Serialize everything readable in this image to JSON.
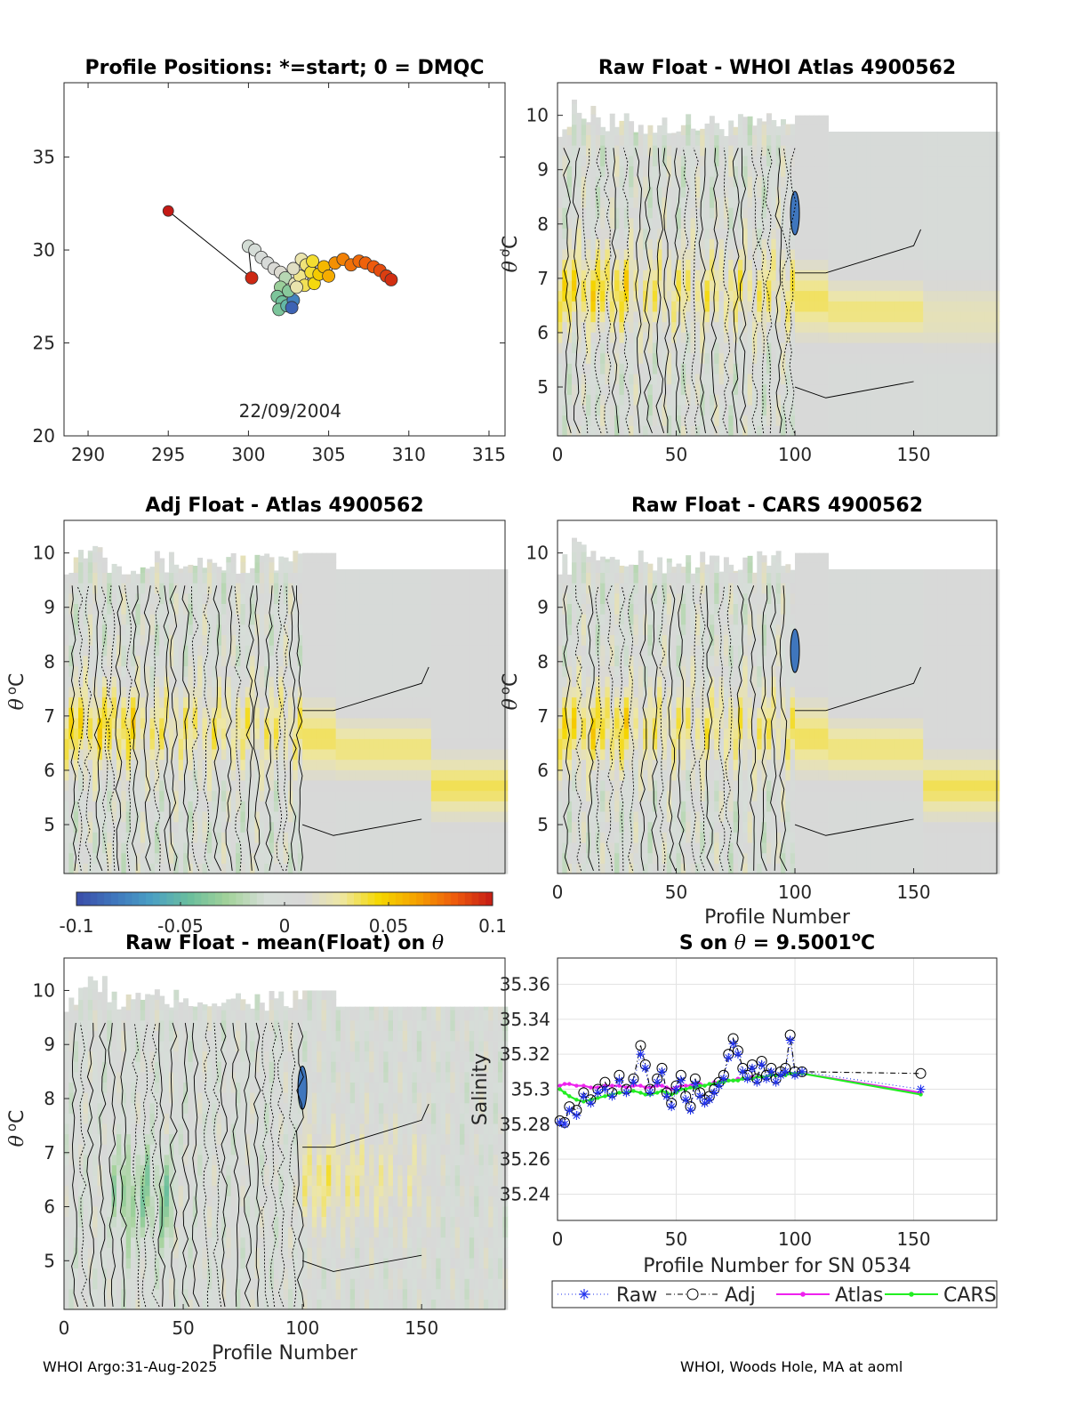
{
  "colors": {
    "colormap": [
      "#3b4ca8",
      "#3f76bd",
      "#4aa0c4",
      "#6bbf9c",
      "#a3d29a",
      "#d6ded8",
      "#d8d8d8",
      "#eee7a4",
      "#f5d800",
      "#f5a100",
      "#ee5b0c",
      "#c41a15"
    ],
    "background_gray": "#d7d7d7",
    "raw_marker": "#2233ee",
    "atlas_line": "#ee22ee",
    "cars_line": "#22ee22"
  },
  "chart_data": [
    {
      "id": "positions",
      "type": "scatter",
      "title": "Profile Positions: *=start; 0 = DMQC",
      "xlim": [
        288.5,
        316
      ],
      "ylim": [
        20,
        39
      ],
      "xticks": [
        "290",
        "295",
        "300",
        "305",
        "310",
        "315"
      ],
      "yticks": [
        "20",
        "25",
        "30",
        "35"
      ],
      "annotation": "22/09/2004",
      "points": [
        [
          295.0,
          32.1,
          1.0
        ],
        [
          300.2,
          28.5,
          0.98
        ],
        [
          300.0,
          30.2,
          0.45
        ],
        [
          300.4,
          30.0,
          0.47
        ],
        [
          300.8,
          29.6,
          0.5
        ],
        [
          301.2,
          29.3,
          0.52
        ],
        [
          301.6,
          29.0,
          0.55
        ],
        [
          302.0,
          28.8,
          0.56
        ],
        [
          302.3,
          28.5,
          0.4
        ],
        [
          302.0,
          28.0,
          0.35
        ],
        [
          301.8,
          27.5,
          0.3
        ],
        [
          302.1,
          27.2,
          0.28
        ],
        [
          301.9,
          26.8,
          0.3
        ],
        [
          302.4,
          27.0,
          0.25
        ],
        [
          302.8,
          27.3,
          0.12
        ],
        [
          302.7,
          26.9,
          0.05
        ],
        [
          302.5,
          27.8,
          0.32
        ],
        [
          302.9,
          28.2,
          0.6
        ],
        [
          303.2,
          28.6,
          0.65
        ],
        [
          302.8,
          29.0,
          0.58
        ],
        [
          303.3,
          29.5,
          0.62
        ],
        [
          303.6,
          29.2,
          0.66
        ],
        [
          303.9,
          28.8,
          0.7
        ],
        [
          303.5,
          28.1,
          0.68
        ],
        [
          303.0,
          28.0,
          0.62
        ],
        [
          304.1,
          28.2,
          0.72
        ],
        [
          304.4,
          28.7,
          0.75
        ],
        [
          304.0,
          29.4,
          0.7
        ],
        [
          304.7,
          29.1,
          0.78
        ],
        [
          305.0,
          28.6,
          0.8
        ],
        [
          305.4,
          29.3,
          0.84
        ],
        [
          305.9,
          29.5,
          0.86
        ],
        [
          306.4,
          29.2,
          0.88
        ],
        [
          306.9,
          29.4,
          0.89
        ],
        [
          307.3,
          29.3,
          0.9
        ],
        [
          307.8,
          29.1,
          0.91
        ],
        [
          308.2,
          28.9,
          0.93
        ],
        [
          308.6,
          28.6,
          0.95
        ],
        [
          308.9,
          28.4,
          0.97
        ]
      ]
    },
    {
      "id": "raw_whoi",
      "type": "heatmap",
      "title": "Raw Float - WHOI Atlas  4900562",
      "xlabel": "",
      "ylabel": "θ °C",
      "xlim": [
        0,
        185
      ],
      "ylim": [
        4.1,
        10.6
      ],
      "xticks": [
        "0",
        "50",
        "100",
        "150"
      ],
      "yticks": [
        "5",
        "6",
        "7",
        "8",
        "9",
        "10"
      ],
      "blue_feature": true
    },
    {
      "id": "adj_atlas",
      "type": "heatmap",
      "title": "Adj Float - Atlas  4900562",
      "xlabel": "",
      "ylabel": "θ °C",
      "xlim": [
        0,
        185
      ],
      "ylim": [
        4.1,
        10.6
      ],
      "xticks": [],
      "yticks": [
        "5",
        "6",
        "7",
        "8",
        "9",
        "10"
      ],
      "blue_feature": false
    },
    {
      "id": "raw_cars",
      "type": "heatmap",
      "title": "Raw Float - CARS  4900562",
      "xlabel": "Profile Number",
      "ylabel": "θ °C",
      "xlim": [
        0,
        185
      ],
      "ylim": [
        4.1,
        10.6
      ],
      "xticks": [
        "0",
        "50",
        "100",
        "150"
      ],
      "yticks": [
        "5",
        "6",
        "7",
        "8",
        "9",
        "10"
      ],
      "blue_feature": true
    },
    {
      "id": "raw_mean",
      "type": "heatmap",
      "title": "Raw Float - mean(Float) on θ",
      "xlabel": "Profile Number",
      "ylabel": "θ °C",
      "xlim": [
        0,
        185
      ],
      "ylim": [
        4.1,
        10.6
      ],
      "xticks": [
        "0",
        "50",
        "100",
        "150"
      ],
      "yticks": [
        "5",
        "6",
        "7",
        "8",
        "9",
        "10"
      ],
      "blue_feature": true
    },
    {
      "id": "colorbar",
      "type": "colorbar",
      "range": [
        -0.1,
        0.1
      ],
      "ticks": [
        "-0.1",
        "-0.05",
        "0",
        "0.05",
        "0.1"
      ]
    },
    {
      "id": "salinity",
      "type": "line",
      "title": "S on θ = 9.5001°C",
      "xlabel": "Profile Number for SN 0534",
      "ylabel": "Salinity",
      "xlim": [
        0,
        185
      ],
      "ylim": [
        35.225,
        35.375
      ],
      "xticks": [
        "0",
        "50",
        "100",
        "150"
      ],
      "yticks": [
        "35.24",
        "35.26",
        "35.28",
        "35.3",
        "35.32",
        "35.34",
        "35.36"
      ],
      "x": [
        1,
        3,
        5,
        8,
        11,
        14,
        17,
        20,
        23,
        26,
        29,
        32,
        35,
        37,
        39,
        42,
        44,
        46,
        48,
        50,
        52,
        54,
        56,
        58,
        60,
        62,
        64,
        66,
        68,
        70,
        72,
        74,
        76,
        78,
        80,
        82,
        84,
        86,
        88,
        90,
        92,
        94,
        96,
        98,
        100,
        103,
        153
      ],
      "series": [
        {
          "name": "Raw",
          "values": [
            35.281,
            35.28,
            35.288,
            35.285,
            35.296,
            35.292,
            35.298,
            35.3,
            35.296,
            35.305,
            35.298,
            35.304,
            35.32,
            35.312,
            35.298,
            35.304,
            35.31,
            35.296,
            35.29,
            35.3,
            35.305,
            35.294,
            35.288,
            35.303,
            35.296,
            35.292,
            35.294,
            35.298,
            35.302,
            35.306,
            35.318,
            35.326,
            35.32,
            35.31,
            35.306,
            35.312,
            35.304,
            35.314,
            35.306,
            35.31,
            35.304,
            35.308,
            35.31,
            35.328,
            35.308,
            35.31,
            35.3
          ]
        },
        {
          "name": "Adj",
          "values": [
            35.282,
            35.281,
            35.29,
            35.288,
            35.298,
            35.294,
            35.3,
            35.304,
            35.298,
            35.308,
            35.3,
            35.306,
            35.325,
            35.314,
            35.3,
            35.306,
            35.312,
            35.298,
            35.292,
            35.302,
            35.308,
            35.296,
            35.29,
            35.306,
            35.298,
            35.294,
            35.296,
            35.3,
            35.304,
            35.308,
            35.32,
            35.329,
            35.322,
            35.312,
            35.308,
            35.314,
            35.306,
            35.316,
            35.308,
            35.312,
            35.306,
            35.31,
            35.312,
            35.331,
            35.31,
            35.31,
            35.309
          ]
        },
        {
          "name": "Atlas",
          "values": [
            35.302,
            35.303,
            35.303,
            35.302,
            35.302,
            35.301,
            35.301,
            35.302,
            35.302,
            35.302,
            35.301,
            35.302,
            35.302,
            35.301,
            35.301,
            35.302,
            35.302,
            35.301,
            35.3,
            35.301,
            35.302,
            35.302,
            35.302,
            35.303,
            35.303,
            35.302,
            35.303,
            35.304,
            35.304,
            35.305,
            35.305,
            35.305,
            35.306,
            35.306,
            35.306,
            35.307,
            35.307,
            35.307,
            35.307,
            35.308,
            35.308,
            35.308,
            35.309,
            35.309,
            35.309,
            35.309,
            35.298
          ]
        },
        {
          "name": "CARS",
          "values": [
            35.3,
            35.298,
            35.296,
            35.294,
            35.293,
            35.294,
            35.295,
            35.296,
            35.297,
            35.298,
            35.298,
            35.299,
            35.298,
            35.297,
            35.297,
            35.298,
            35.299,
            35.298,
            35.297,
            35.298,
            35.3,
            35.3,
            35.301,
            35.301,
            35.302,
            35.302,
            35.303,
            35.303,
            35.304,
            35.304,
            35.305,
            35.305,
            35.305,
            35.306,
            35.306,
            35.306,
            35.307,
            35.307,
            35.307,
            35.308,
            35.308,
            35.308,
            35.308,
            35.309,
            35.309,
            35.309,
            35.297
          ]
        }
      ],
      "legend": [
        "Raw",
        "Adj",
        "Atlas",
        "CARS"
      ]
    }
  ],
  "footer": {
    "left": "WHOI Argo:31-Aug-2025",
    "right": "WHOI, Woods Hole, MA at aoml"
  }
}
